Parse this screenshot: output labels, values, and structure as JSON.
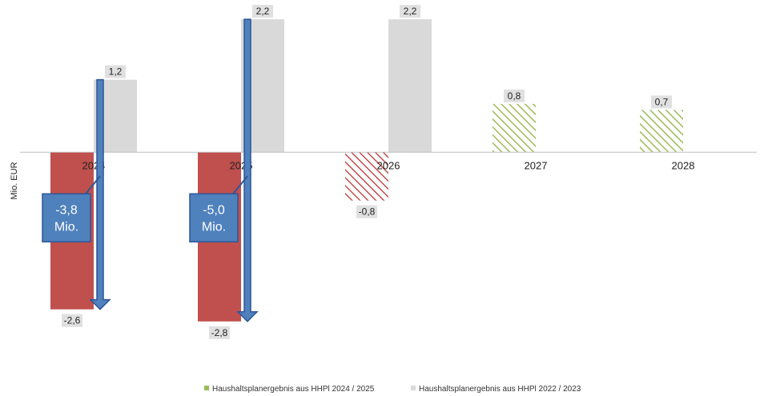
{
  "chart_data": {
    "type": "bar",
    "ylabel": "Mio. EUR",
    "categories": [
      "2024",
      "2025",
      "2026",
      "2027",
      "2028"
    ],
    "ylim": [
      -3.2,
      2.4
    ],
    "series": [
      {
        "name": "Haushaltsplanergebnis aus HHPl 2024 / 2025",
        "values": [
          -2.6,
          -2.8,
          -0.8,
          0.8,
          0.7
        ],
        "labels": [
          "-2,6",
          "-2,8",
          "-0,8",
          "0,8",
          "0,7"
        ],
        "colors": [
          "#c0504d",
          "#c0504d",
          "#c0504d",
          "#9bbb59",
          "#9bbb59"
        ],
        "hatched": [
          false,
          false,
          true,
          true,
          true
        ]
      },
      {
        "name": "Haushaltsplanergebnis aus HHPl 2022 / 2023",
        "values": [
          1.2,
          2.2,
          2.2,
          null,
          null
        ],
        "labels": [
          "1,2",
          "2,2",
          "2,2",
          "",
          ""
        ],
        "color": "#d9d9d9"
      }
    ],
    "annotations": [
      {
        "category": "2024",
        "from": 1.2,
        "to": -2.6,
        "line1": "-3,8",
        "line2": "Mio."
      },
      {
        "category": "2025",
        "from": 2.2,
        "to": -2.8,
        "line1": "-5,0",
        "line2": "Mio."
      }
    ],
    "legend_position": "bottom",
    "grid": false,
    "colors": {
      "arrow": "#4f81bd",
      "arrow_border": "#2f5597"
    }
  }
}
